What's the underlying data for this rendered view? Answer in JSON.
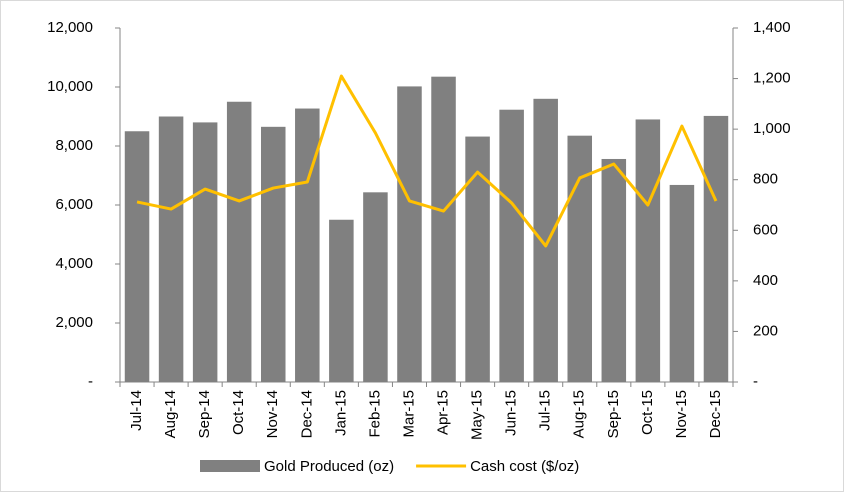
{
  "chart_data": {
    "type": "bar_line",
    "categories": [
      "Jul-14",
      "Aug-14",
      "Sep-14",
      "Oct-14",
      "Nov-14",
      "Dec-14",
      "Jan-15",
      "Feb-15",
      "Mar-15",
      "Apr-15",
      "May-15",
      "Jun-15",
      "Jul-15",
      "Aug-15",
      "Sep-15",
      "Oct-15",
      "Nov-15",
      "Dec-15"
    ],
    "series": [
      {
        "name": "Gold Produced (oz)",
        "type": "bar",
        "color": "#808080",
        "values": [
          8500,
          9000,
          8800,
          9500,
          8650,
          9270,
          5500,
          6430,
          10020,
          10350,
          8320,
          9230,
          9600,
          8350,
          7560,
          8900,
          6680,
          9020
        ]
      },
      {
        "name": "Cash cost ($/oz)",
        "type": "line",
        "axis": "y2",
        "color": "#FFC000",
        "values": [
          712,
          684,
          763,
          716,
          767,
          791,
          1210,
          985,
          716,
          676,
          830,
          708,
          538,
          807,
          862,
          700,
          1012,
          716
        ]
      }
    ],
    "ylim": [
      0,
      12000
    ],
    "yticks": [
      {
        "value": 0,
        "label": "-"
      },
      {
        "value": 2000,
        "label": "2,000"
      },
      {
        "value": 4000,
        "label": "4,000"
      },
      {
        "value": 6000,
        "label": "6,000"
      },
      {
        "value": 8000,
        "label": "8,000"
      },
      {
        "value": 10000,
        "label": "10,000"
      },
      {
        "value": 12000,
        "label": "12,000"
      }
    ],
    "y2lim": [
      0,
      1400
    ],
    "y2ticks": [
      {
        "value": 0,
        "label": "-"
      },
      200,
      400,
      600,
      800,
      {
        "value": 1000,
        "label": "1,000"
      },
      {
        "value": 1200,
        "label": "1,200"
      },
      {
        "value": 1400,
        "label": "1,400"
      }
    ],
    "grid": false,
    "legend": "bottom"
  }
}
